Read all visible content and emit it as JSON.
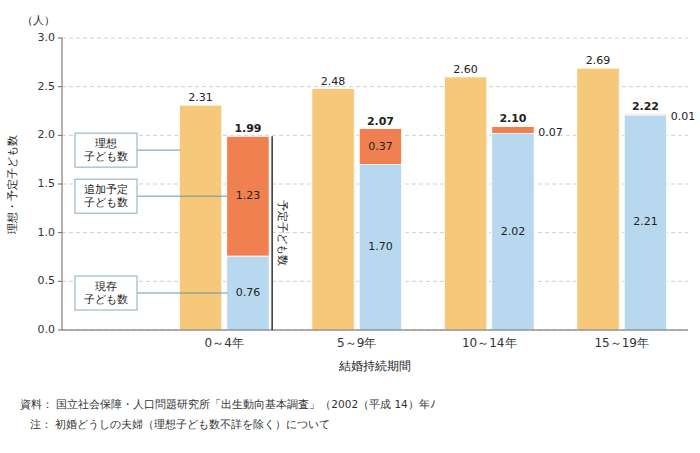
{
  "chart_data": {
    "type": "bar",
    "categories": [
      "0～4年",
      "5～9年",
      "10～14年",
      "15～19年"
    ],
    "series": [
      {
        "color": "#F5C87A",
        "values": [
          2.31,
          2.48,
          2.6,
          2.69
        ],
        "value_labels": [
          "2.31",
          "2.48",
          "2.60",
          "2.69"
        ]
      },
      {
        "color": "#B8D8F0",
        "stacked": true,
        "values": [
          0.76,
          1.7,
          2.02,
          2.21
        ],
        "value_labels": [
          "0.76",
          "1.70",
          "2.02",
          "2.21"
        ]
      },
      {
        "color": "#F08050",
        "stacked": true,
        "values": [
          1.23,
          0.37,
          0.07,
          0.01
        ],
        "value_labels": [
          "1.23",
          "0.37",
          "0.07",
          "0.01"
        ]
      }
    ],
    "totals": [
      1.99,
      2.07,
      2.1,
      2.22
    ],
    "total_labels": [
      "1.99",
      "2.07",
      "2.10",
      "2.22"
    ],
    "data_labels": true,
    "xlabel": "結婚持続期間",
    "ylabel": "理想・予定子ども数",
    "y_unit_label": "（人）",
    "ylim": [
      0.0,
      3.0
    ],
    "yticks": [
      {
        "value": 0.0,
        "label": "0.0"
      },
      0.5,
      {
        "value": 1.0,
        "label": "1.0"
      },
      1.5,
      {
        "value": 2.0,
        "label": "2.0"
      },
      2.5,
      {
        "value": 3.0,
        "label": "3.0"
      }
    ],
    "grid": true,
    "annotations": [
      {
        "text": "理想\n子ども数",
        "category": "0～4年",
        "series": 0
      },
      {
        "text": "追加予定\n子ども数",
        "category": "0～4年",
        "series": 2
      },
      {
        "text": "現存\n子ども数",
        "category": "0～4年",
        "series": 1
      },
      {
        "text": "予定子ども数",
        "category": "0～4年",
        "series": [
          1,
          2
        ]
      }
    ],
    "source": "資料： 国立社会保障・人口問題研究所「出生動向基本調査」（2002（平成 14）年ﾉ",
    "note": "   注： 初婚どうしの夫婦（理想子ども数不詳を除く）について"
  }
}
